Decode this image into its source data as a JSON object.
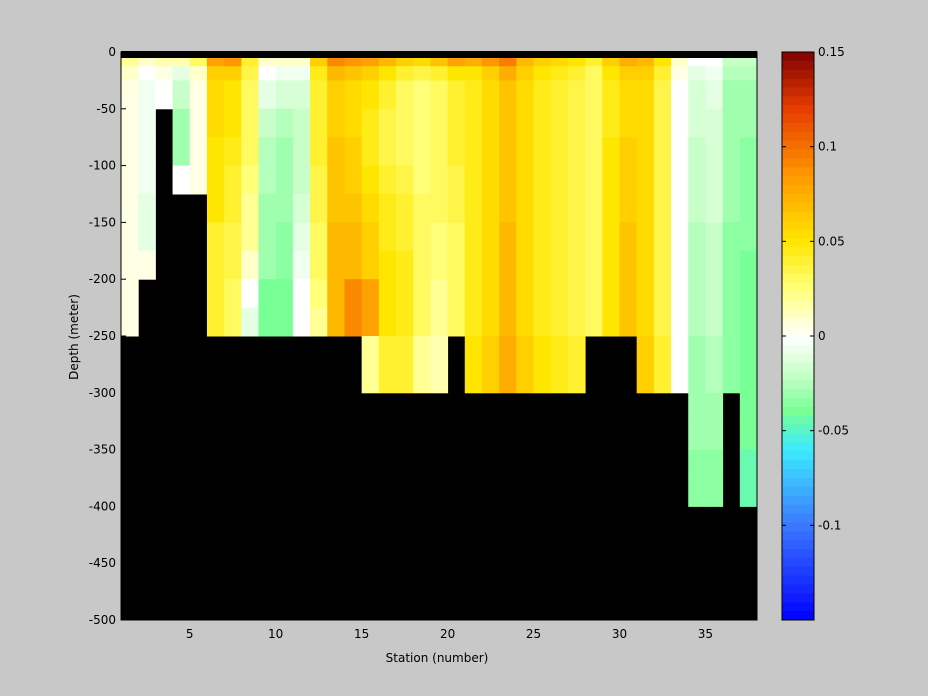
{
  "chart_data": {
    "type": "heatmap",
    "title": "",
    "xlabel": "Station (number)",
    "ylabel": "Depth (meter)",
    "x_range": [
      1,
      38
    ],
    "y_range": [
      -500,
      0
    ],
    "x_ticks": [
      5,
      10,
      15,
      20,
      25,
      30,
      35
    ],
    "y_ticks": [
      0,
      -50,
      -100,
      -150,
      -200,
      -250,
      -300,
      -350,
      -400,
      -450,
      -500
    ],
    "colorbar": {
      "range": [
        -0.15,
        0.15
      ],
      "ticks": [
        0.15,
        0.1,
        0.05,
        0,
        -0.05,
        -0.1
      ],
      "colormap": "blue-cyan-green-white-yellow-orange-red"
    },
    "mask_color": "#000000",
    "depth_bins_top_m": [
      0,
      -12.5,
      -25,
      -50,
      -75,
      -100,
      -125,
      -150,
      -175,
      -200,
      -225,
      -250,
      -275,
      -300,
      -325,
      -350,
      -375
    ],
    "station_bottom_depth_m": [
      -250,
      -200,
      -75,
      -150,
      -150,
      -250,
      -250,
      -250,
      -250,
      -250,
      -250,
      -250,
      -250,
      -250,
      -300,
      -300,
      -300,
      -300,
      -300,
      -250,
      -300,
      -300,
      -300,
      -300,
      -300,
      -300,
      -300,
      -250,
      -250,
      -250,
      -300,
      -300,
      -300,
      -400,
      -400,
      -300,
      -400
    ],
    "station_values": [
      [
        0.02,
        0.01,
        0.005,
        0.005,
        0.005,
        0.005,
        0.005,
        0.005,
        0.005,
        0.005,
        0.005
      ],
      [
        0.01,
        0.0,
        -0.005,
        -0.005,
        -0.005,
        -0.005,
        -0.01,
        -0.01,
        0.005
      ],
      [
        0.015,
        0.005,
        0.0
      ],
      [
        0.015,
        -0.01,
        -0.02,
        -0.03,
        -0.03,
        0.0
      ],
      [
        0.03,
        0.01,
        0.005,
        0.005,
        0.005,
        0.005
      ],
      [
        0.08,
        0.06,
        0.055,
        0.055,
        0.05,
        0.05,
        0.05,
        0.04,
        0.04,
        0.04,
        0.04
      ],
      [
        0.085,
        0.06,
        0.05,
        0.05,
        0.045,
        0.04,
        0.04,
        0.035,
        0.035,
        0.03,
        0.03
      ],
      [
        0.04,
        0.035,
        0.03,
        0.03,
        0.03,
        0.025,
        0.02,
        0.02,
        0.01,
        0.0,
        -0.01
      ],
      [
        0.01,
        0.0,
        -0.01,
        -0.02,
        -0.025,
        -0.025,
        -0.03,
        -0.03,
        -0.03,
        -0.04,
        -0.04
      ],
      [
        0.01,
        -0.005,
        -0.015,
        -0.025,
        -0.03,
        -0.03,
        -0.03,
        -0.035,
        -0.035,
        -0.04,
        -0.04
      ],
      [
        0.01,
        -0.005,
        -0.015,
        -0.02,
        -0.02,
        -0.02,
        -0.015,
        -0.01,
        -0.005,
        0.0,
        0.0
      ],
      [
        0.06,
        0.045,
        0.04,
        0.04,
        0.04,
        0.035,
        0.035,
        0.03,
        0.03,
        0.025,
        0.02
      ],
      [
        0.09,
        0.07,
        0.06,
        0.06,
        0.065,
        0.065,
        0.065,
        0.07,
        0.07,
        0.07,
        0.07
      ],
      [
        0.085,
        0.065,
        0.055,
        0.055,
        0.06,
        0.06,
        0.065,
        0.07,
        0.07,
        0.09,
        0.09
      ],
      [
        0.08,
        0.06,
        0.05,
        0.045,
        0.045,
        0.05,
        0.055,
        0.06,
        0.06,
        0.08,
        0.08,
        0.02,
        0.02
      ],
      [
        0.07,
        0.05,
        0.04,
        0.035,
        0.035,
        0.04,
        0.045,
        0.045,
        0.05,
        0.05,
        0.05,
        0.04,
        0.04
      ],
      [
        0.06,
        0.04,
        0.03,
        0.03,
        0.03,
        0.035,
        0.04,
        0.04,
        0.045,
        0.045,
        0.045,
        0.04,
        0.04
      ],
      [
        0.055,
        0.035,
        0.025,
        0.025,
        0.025,
        0.025,
        0.03,
        0.03,
        0.03,
        0.03,
        0.03,
        0.02,
        0.02
      ],
      [
        0.065,
        0.04,
        0.03,
        0.03,
        0.03,
        0.03,
        0.03,
        0.025,
        0.025,
        0.02,
        0.02,
        0.015,
        0.015
      ],
      [
        0.08,
        0.05,
        0.04,
        0.04,
        0.04,
        0.035,
        0.035,
        0.03,
        0.03,
        0.03,
        0.03
      ],
      [
        0.075,
        0.05,
        0.045,
        0.045,
        0.045,
        0.045,
        0.045,
        0.045,
        0.045,
        0.045,
        0.045,
        0.05,
        0.05
      ],
      [
        0.085,
        0.06,
        0.055,
        0.055,
        0.055,
        0.055,
        0.055,
        0.055,
        0.055,
        0.055,
        0.055,
        0.06,
        0.06
      ],
      [
        0.095,
        0.075,
        0.065,
        0.065,
        0.065,
        0.065,
        0.065,
        0.07,
        0.07,
        0.07,
        0.07,
        0.075,
        0.075
      ],
      [
        0.07,
        0.06,
        0.055,
        0.055,
        0.055,
        0.055,
        0.055,
        0.055,
        0.055,
        0.055,
        0.055,
        0.06,
        0.06
      ],
      [
        0.06,
        0.05,
        0.045,
        0.045,
        0.045,
        0.045,
        0.045,
        0.045,
        0.045,
        0.045,
        0.045,
        0.05,
        0.05
      ],
      [
        0.055,
        0.045,
        0.04,
        0.04,
        0.04,
        0.04,
        0.04,
        0.04,
        0.04,
        0.04,
        0.04,
        0.045,
        0.045
      ],
      [
        0.05,
        0.04,
        0.035,
        0.035,
        0.035,
        0.035,
        0.035,
        0.035,
        0.035,
        0.035,
        0.035,
        0.04,
        0.04
      ],
      [
        0.04,
        0.03,
        0.03,
        0.03,
        0.03,
        0.03,
        0.03,
        0.03,
        0.03,
        0.03,
        0.03
      ],
      [
        0.06,
        0.05,
        0.045,
        0.045,
        0.05,
        0.05,
        0.05,
        0.05,
        0.05,
        0.05,
        0.05
      ],
      [
        0.075,
        0.06,
        0.055,
        0.055,
        0.06,
        0.06,
        0.06,
        0.065,
        0.065,
        0.065,
        0.065
      ],
      [
        0.07,
        0.06,
        0.055,
        0.055,
        0.055,
        0.055,
        0.055,
        0.055,
        0.055,
        0.055,
        0.055,
        0.06,
        0.06
      ],
      [
        0.05,
        0.04,
        0.035,
        0.035,
        0.035,
        0.035,
        0.035,
        0.035,
        0.035,
        0.035,
        0.035,
        0.04,
        0.04
      ],
      [
        0.01,
        0.005,
        0.0,
        0.0,
        0.0,
        0.0,
        0.0,
        0.0,
        0.0,
        0.0,
        0.0,
        0.0,
        0.0
      ],
      [
        0.0,
        -0.01,
        -0.015,
        -0.015,
        -0.02,
        -0.02,
        -0.02,
        -0.025,
        -0.025,
        -0.025,
        -0.025,
        -0.03,
        -0.03,
        -0.03,
        -0.03,
        -0.035,
        -0.035
      ],
      [
        0.0,
        -0.005,
        -0.01,
        -0.015,
        -0.015,
        -0.015,
        -0.015,
        -0.02,
        -0.02,
        -0.02,
        -0.02,
        -0.025,
        -0.025,
        -0.03,
        -0.03,
        -0.035,
        -0.035
      ],
      [
        -0.02,
        -0.025,
        -0.03,
        -0.03,
        -0.03,
        -0.03,
        -0.03,
        -0.035,
        -0.035,
        -0.035,
        -0.035,
        -0.035,
        -0.035
      ],
      [
        -0.02,
        -0.025,
        -0.03,
        -0.03,
        -0.035,
        -0.035,
        -0.035,
        -0.035,
        -0.04,
        -0.04,
        -0.04,
        -0.04,
        -0.04,
        -0.04,
        -0.04,
        -0.045,
        -0.045
      ]
    ]
  }
}
